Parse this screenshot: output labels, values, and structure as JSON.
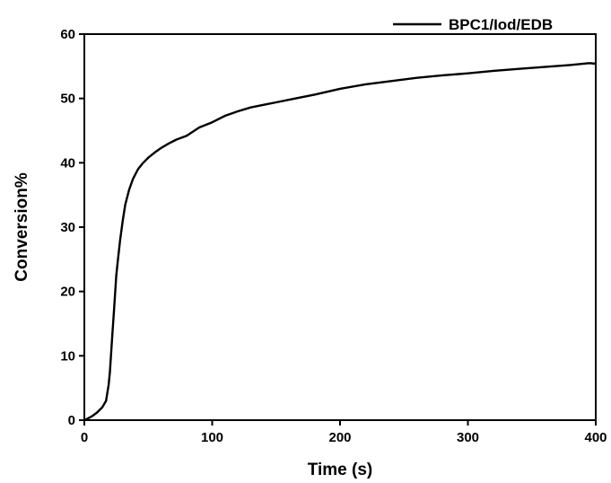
{
  "chart_data": {
    "type": "line",
    "title": "",
    "xlabel": "Time (s)",
    "ylabel": "Conversion%",
    "xlim": [
      0,
      400
    ],
    "ylim": [
      0,
      60
    ],
    "x_ticks": [
      0,
      100,
      200,
      300,
      400
    ],
    "x_tick_labels": [
      "0",
      "100",
      "200",
      "300",
      "400"
    ],
    "y_ticks": [
      0,
      10,
      20,
      30,
      40,
      50,
      60
    ],
    "y_tick_labels": [
      "0",
      "10",
      "20",
      "30",
      "40",
      "50",
      "60"
    ],
    "grid": false,
    "legend_position": "top-right",
    "line_color": "#000000",
    "series": [
      {
        "name": "BPC1/Iod/EDB",
        "x": [
          0,
          3,
          6,
          10,
          14,
          17,
          19,
          20,
          21,
          22,
          23,
          24,
          25,
          26,
          28,
          30,
          32,
          35,
          38,
          42,
          46,
          50,
          55,
          60,
          66,
          72,
          80,
          90,
          100,
          110,
          120,
          130,
          140,
          150,
          165,
          180,
          200,
          220,
          240,
          260,
          280,
          300,
          320,
          340,
          360,
          380,
          395,
          400
        ],
        "y": [
          0,
          0.3,
          0.6,
          1.2,
          2.0,
          3.0,
          5.5,
          7.5,
          10.5,
          13.5,
          16.5,
          19.5,
          22.5,
          24.5,
          28,
          31,
          33.5,
          35.8,
          37.5,
          39.0,
          40.0,
          40.8,
          41.6,
          42.3,
          43.0,
          43.6,
          44.2,
          45.5,
          46.3,
          47.3,
          48.0,
          48.6,
          49.0,
          49.4,
          50.0,
          50.6,
          51.5,
          52.2,
          52.7,
          53.2,
          53.6,
          53.9,
          54.3,
          54.6,
          54.9,
          55.2,
          55.5,
          55.4
        ]
      }
    ]
  }
}
